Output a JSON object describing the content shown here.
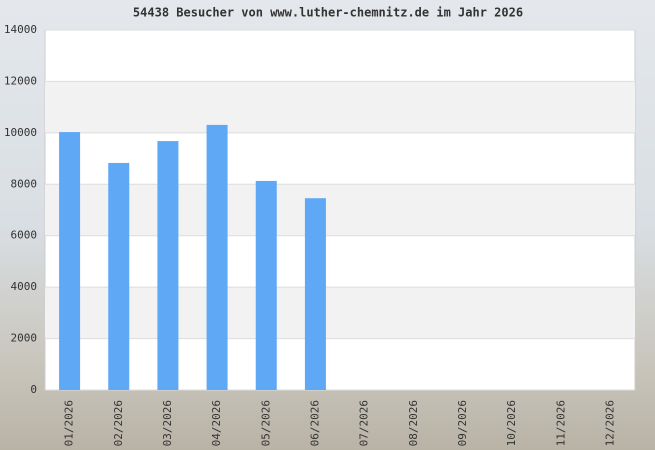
{
  "chart_data": {
    "type": "bar",
    "title": "54438 Besucher von www.luther-chemnitz.de im Jahr 2026",
    "categories": [
      "01/2026",
      "02/2026",
      "03/2026",
      "04/2026",
      "05/2026",
      "06/2026",
      "07/2026",
      "08/2026",
      "09/2026",
      "10/2026",
      "11/2026",
      "12/2026"
    ],
    "values": [
      10030,
      8830,
      9680,
      10310,
      8130,
      7458,
      null,
      null,
      null,
      null,
      null,
      null
    ],
    "color": "#5fa8f5",
    "ylim": [
      0,
      14000
    ],
    "yticks": [
      0,
      2000,
      4000,
      6000,
      8000,
      10000,
      12000,
      14000
    ],
    "grid": true
  }
}
